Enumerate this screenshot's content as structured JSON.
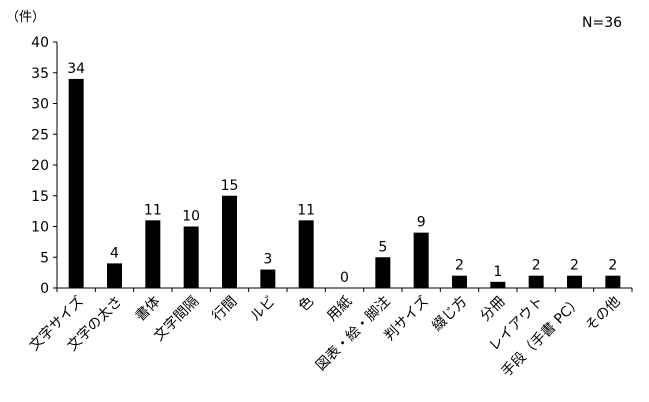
{
  "chart_data": {
    "type": "bar",
    "unit_label": "（件）",
    "n_label": "N=36",
    "ylim": [
      0,
      40
    ],
    "yticks": [
      0,
      5,
      10,
      15,
      20,
      25,
      30,
      35,
      40
    ],
    "grid": false,
    "legend": "none",
    "bar_color": "#000000",
    "categories": [
      "文字サイズ",
      "文字の太さ",
      "書体",
      "文字間隔",
      "行間",
      "ルビ",
      "色",
      "用紙",
      "図表・絵・脚注",
      "判サイズ",
      "綴じ方",
      "分冊",
      "レイアウト",
      "手段（手書 PC）",
      "その他"
    ],
    "values": [
      34,
      4,
      11,
      10,
      15,
      3,
      11,
      0,
      5,
      9,
      2,
      1,
      2,
      2,
      2
    ]
  }
}
